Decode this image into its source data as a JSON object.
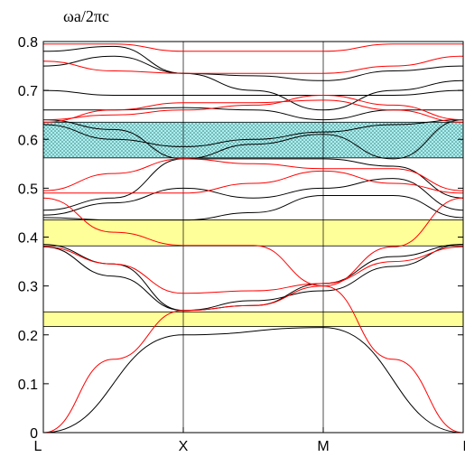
{
  "chart_data": {
    "type": "line",
    "ylabel": "ωa/2πc",
    "ylim": [
      0,
      0.8
    ],
    "yticks": [
      0,
      0.1,
      0.2,
      0.3,
      0.4,
      0.5,
      0.6,
      0.7,
      0.8
    ],
    "ytick_labels": [
      "0",
      "0.1",
      "0.2",
      "0.3",
      "0.4",
      "0.5",
      "0.6",
      "0.7",
      "0.8"
    ],
    "x_points": [
      "L",
      "X",
      "M",
      "L"
    ],
    "x_positions": [
      0,
      1,
      2,
      3
    ],
    "grid": "vertical lines at high-symmetry points",
    "colors": {
      "series_a": "#000000",
      "series_b": "#ff0000",
      "gap_yellow": "#ffff99",
      "gap_cyan": "#a8f0f0"
    },
    "gaps": [
      {
        "from": 0.217,
        "to": 0.247,
        "style": "yellow"
      },
      {
        "from": 0.382,
        "to": 0.435,
        "style": "yellow"
      },
      {
        "from": 0.562,
        "to": 0.635,
        "style": "cyan-dotted"
      }
    ],
    "series": [
      {
        "color": "black",
        "bands": [
          [
            [
              0,
              0.0
            ],
            [
              1,
              0.2
            ],
            [
              2,
              0.215
            ],
            [
              3,
              0.0
            ]
          ],
          [
            [
              0,
              0.38
            ],
            [
              0.5,
              0.32
            ],
            [
              1,
              0.25
            ],
            [
              1.5,
              0.27
            ],
            [
              2,
              0.29
            ],
            [
              2.5,
              0.34
            ],
            [
              3,
              0.385
            ]
          ],
          [
            [
              0,
              0.385
            ],
            [
              0.5,
              0.345
            ],
            [
              1,
              0.25
            ],
            [
              1.5,
              0.26
            ],
            [
              2,
              0.305
            ],
            [
              2.5,
              0.36
            ],
            [
              3,
              0.385
            ]
          ],
          [
            [
              0,
              0.44
            ],
            [
              0.5,
              0.435
            ],
            [
              1,
              0.435
            ],
            [
              1.5,
              0.45
            ],
            [
              2,
              0.485
            ],
            [
              2.5,
              0.485
            ],
            [
              3,
              0.44
            ]
          ],
          [
            [
              0,
              0.445
            ],
            [
              0.5,
              0.47
            ],
            [
              1,
              0.5
            ],
            [
              1.5,
              0.48
            ],
            [
              2,
              0.5
            ],
            [
              2.5,
              0.52
            ],
            [
              3,
              0.455
            ]
          ],
          [
            [
              0,
              0.455
            ],
            [
              0.5,
              0.48
            ],
            [
              1,
              0.56
            ],
            [
              1.5,
              0.56
            ],
            [
              2,
              0.56
            ],
            [
              2.5,
              0.545
            ],
            [
              3,
              0.48
            ]
          ],
          [
            [
              0,
              0.63
            ],
            [
              0.5,
              0.6
            ],
            [
              1,
              0.585
            ],
            [
              1.5,
              0.6
            ],
            [
              2,
              0.615
            ],
            [
              2.5,
              0.63
            ],
            [
              3,
              0.64
            ]
          ],
          [
            [
              0,
              0.64
            ],
            [
              0.5,
              0.62
            ],
            [
              1,
              0.56
            ],
            [
              1.5,
              0.59
            ],
            [
              2,
              0.61
            ],
            [
              2.5,
              0.56
            ],
            [
              3,
              0.64
            ]
          ],
          [
            [
              0,
              0.66
            ],
            [
              0.5,
              0.66
            ],
            [
              1,
              0.665
            ],
            [
              1.5,
              0.66
            ],
            [
              2,
              0.64
            ],
            [
              2.5,
              0.66
            ],
            [
              3,
              0.66
            ]
          ],
          [
            [
              0,
              0.7
            ],
            [
              0.5,
              0.69
            ],
            [
              1,
              0.69
            ],
            [
              1.5,
              0.69
            ],
            [
              2,
              0.69
            ],
            [
              2.5,
              0.69
            ],
            [
              3,
              0.7
            ]
          ],
          [
            [
              0,
              0.75
            ],
            [
              0.5,
              0.77
            ],
            [
              1,
              0.735
            ],
            [
              1.5,
              0.7
            ],
            [
              2,
              0.66
            ],
            [
              2.5,
              0.7
            ],
            [
              3,
              0.72
            ]
          ],
          [
            [
              0,
              0.78
            ],
            [
              0.5,
              0.79
            ],
            [
              1,
              0.735
            ],
            [
              1.5,
              0.73
            ],
            [
              2,
              0.72
            ],
            [
              2.5,
              0.74
            ],
            [
              3,
              0.75
            ]
          ]
        ]
      },
      {
        "color": "red",
        "bands": [
          [
            [
              0,
              0.0
            ],
            [
              0.5,
              0.15
            ],
            [
              1,
              0.25
            ],
            [
              1.5,
              0.26
            ],
            [
              2,
              0.3
            ],
            [
              2.5,
              0.15
            ],
            [
              3,
              0.0
            ]
          ],
          [
            [
              0,
              0.38
            ],
            [
              0.5,
              0.345
            ],
            [
              1,
              0.285
            ],
            [
              1.5,
              0.29
            ],
            [
              2,
              0.305
            ],
            [
              2.5,
              0.35
            ],
            [
              3,
              0.38
            ]
          ],
          [
            [
              0,
              0.48
            ],
            [
              0.5,
              0.41
            ],
            [
              1,
              0.383
            ],
            [
              1.5,
              0.383
            ],
            [
              2,
              0.3
            ],
            [
              2.5,
              0.38
            ],
            [
              3,
              0.48
            ]
          ],
          [
            [
              0,
              0.49
            ],
            [
              0.5,
              0.49
            ],
            [
              1,
              0.49
            ],
            [
              1.5,
              0.51
            ],
            [
              2,
              0.535
            ],
            [
              2.5,
              0.51
            ],
            [
              3,
              0.49
            ]
          ],
          [
            [
              0,
              0.495
            ],
            [
              0.5,
              0.53
            ],
            [
              1,
              0.56
            ],
            [
              1.5,
              0.55
            ],
            [
              2,
              0.54
            ],
            [
              2.5,
              0.54
            ],
            [
              3,
              0.495
            ]
          ],
          [
            [
              0,
              0.635
            ],
            [
              0.5,
              0.66
            ],
            [
              1,
              0.675
            ],
            [
              1.5,
              0.675
            ],
            [
              2,
              0.68
            ],
            [
              2.5,
              0.66
            ],
            [
              3,
              0.635
            ]
          ],
          [
            [
              0,
              0.64
            ],
            [
              0.5,
              0.65
            ],
            [
              1,
              0.66
            ],
            [
              1.5,
              0.67
            ],
            [
              2,
              0.69
            ],
            [
              2.5,
              0.67
            ],
            [
              3,
              0.64
            ]
          ],
          [
            [
              0,
              0.76
            ],
            [
              0.5,
              0.74
            ],
            [
              1,
              0.735
            ],
            [
              1.5,
              0.735
            ],
            [
              2,
              0.735
            ],
            [
              2.5,
              0.75
            ],
            [
              3,
              0.77
            ]
          ],
          [
            [
              0,
              0.795
            ],
            [
              0.5,
              0.795
            ],
            [
              1,
              0.78
            ],
            [
              1.5,
              0.78
            ],
            [
              2,
              0.78
            ],
            [
              2.5,
              0.795
            ],
            [
              3,
              0.795
            ]
          ]
        ]
      }
    ]
  }
}
